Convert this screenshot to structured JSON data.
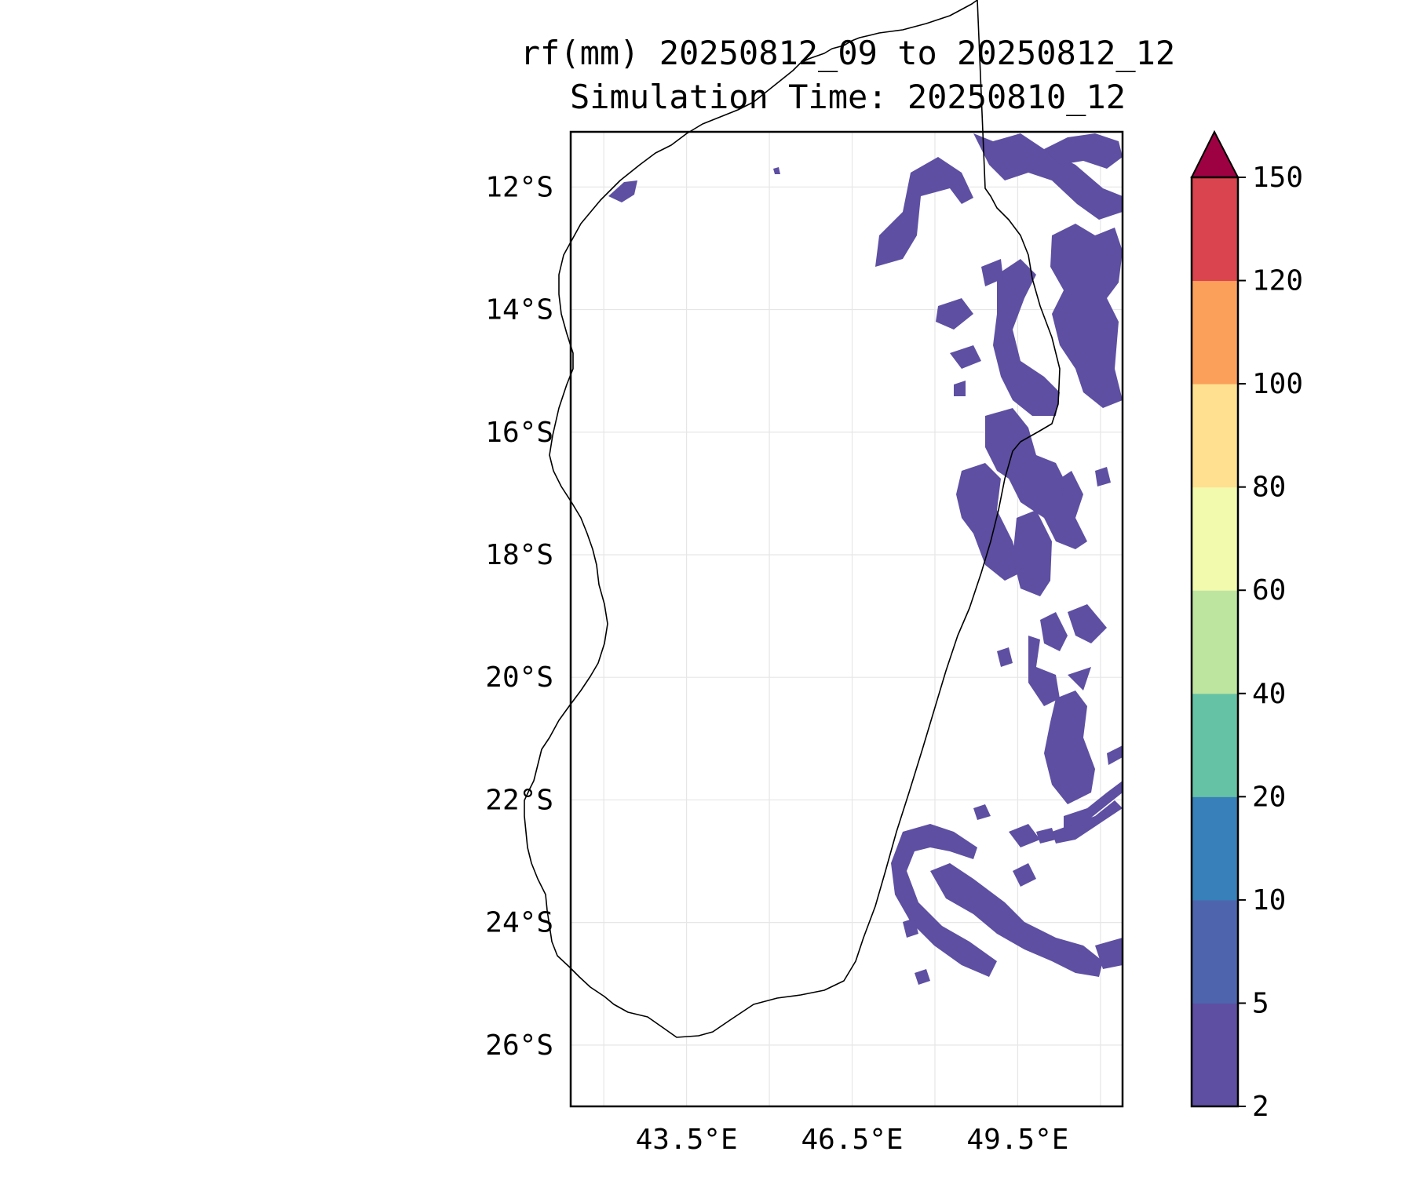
{
  "title": {
    "line1": "rf(mm) 20250812_09 to 20250812_12",
    "line2": "Simulation Time: 20250810_12"
  },
  "map": {
    "region": "Madagascar",
    "lon_range": [
      41.4,
      51.4
    ],
    "lat_range": [
      -27.0,
      -11.1
    ],
    "lat_ticks": [
      {
        "value": -12,
        "label": "12°S"
      },
      {
        "value": -14,
        "label": "14°S"
      },
      {
        "value": -16,
        "label": "16°S"
      },
      {
        "value": -18,
        "label": "18°S"
      },
      {
        "value": -20,
        "label": "20°S"
      },
      {
        "value": -22,
        "label": "22°S"
      },
      {
        "value": -24,
        "label": "24°S"
      },
      {
        "value": -26,
        "label": "26°S"
      }
    ],
    "lon_ticks": [
      {
        "value": 43.5,
        "label": "43.5°E"
      },
      {
        "value": 46.5,
        "label": "46.5°E"
      },
      {
        "value": 49.5,
        "label": "49.5°E"
      }
    ],
    "gridlines": true,
    "rain_color": "#5e4fa2"
  },
  "colorbar": {
    "label_top": "150",
    "extend": "max",
    "extend_color": "#9e0142",
    "levels": [
      {
        "label": "2",
        "color": "#5e4fa2"
      },
      {
        "label": "5",
        "color": "#4e65ae"
      },
      {
        "label": "10",
        "color": "#3880b9"
      },
      {
        "label": "20",
        "color": "#66c2a5"
      },
      {
        "label": "40",
        "color": "#bde5a0"
      },
      {
        "label": "60",
        "color": "#f2faae"
      },
      {
        "label": "80",
        "color": "#fee090"
      },
      {
        "label": "100",
        "color": "#fba05b"
      },
      {
        "label": "120",
        "color": "#d9444e"
      }
    ]
  }
}
